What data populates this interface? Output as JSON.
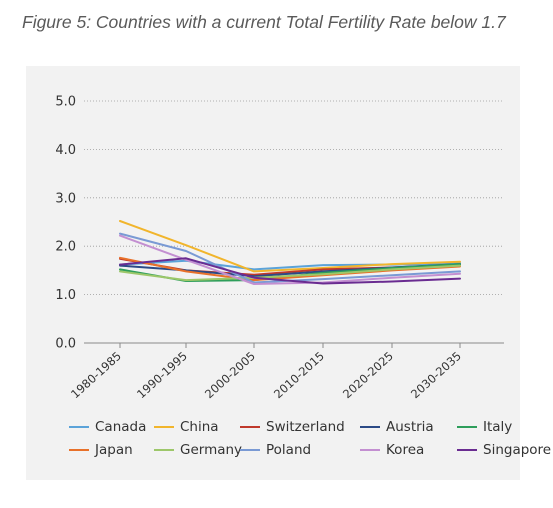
{
  "figure": {
    "caption": "Figure 5: Countries with a current Total Fertility Rate below 1.7"
  },
  "chart_data": {
    "type": "line",
    "title": "Figure 5: Countries with a current Total Fertility Rate below 1.7",
    "xlabel": "",
    "ylabel": "",
    "ylim": [
      0,
      5
    ],
    "yticks": [
      "0.0",
      "1.0",
      "2.0",
      "3.0",
      "4.0",
      "5.0"
    ],
    "grid": "horizontal dotted",
    "legend_position": "bottom",
    "categories": [
      "1980-1985",
      "1990-1995",
      "2000-2005",
      "2010-2015",
      "2020-2025",
      "2030-2035"
    ],
    "series": [
      {
        "name": "Canada",
        "color": "#5ba3d9",
        "values": [
          1.62,
          1.7,
          1.52,
          1.61,
          1.62,
          1.65
        ]
      },
      {
        "name": "China",
        "color": "#f1b52c",
        "values": [
          2.52,
          2.02,
          1.48,
          1.55,
          1.63,
          1.68
        ]
      },
      {
        "name": "Switzerland",
        "color": "#c0392b",
        "values": [
          1.74,
          1.5,
          1.41,
          1.52,
          1.56,
          1.62
        ]
      },
      {
        "name": "Austria",
        "color": "#2c4a86",
        "values": [
          1.6,
          1.5,
          1.38,
          1.48,
          1.56,
          1.63
        ]
      },
      {
        "name": "Italy",
        "color": "#2e9e5b",
        "values": [
          1.52,
          1.28,
          1.3,
          1.45,
          1.55,
          1.63
        ]
      },
      {
        "name": "Japan",
        "color": "#e8712a",
        "values": [
          1.76,
          1.48,
          1.3,
          1.4,
          1.5,
          1.58
        ]
      },
      {
        "name": "Germany",
        "color": "#9dc76a",
        "values": [
          1.48,
          1.3,
          1.35,
          1.42,
          1.52,
          1.6
        ]
      },
      {
        "name": "Poland",
        "color": "#7a9ad4",
        "values": [
          2.26,
          1.9,
          1.25,
          1.32,
          1.4,
          1.48
        ]
      },
      {
        "name": "Korea",
        "color": "#c38fd1",
        "values": [
          2.22,
          1.72,
          1.22,
          1.25,
          1.35,
          1.43
        ]
      },
      {
        "name": "Singapore",
        "color": "#6a2c91",
        "values": [
          1.62,
          1.75,
          1.35,
          1.23,
          1.27,
          1.33
        ]
      }
    ]
  }
}
